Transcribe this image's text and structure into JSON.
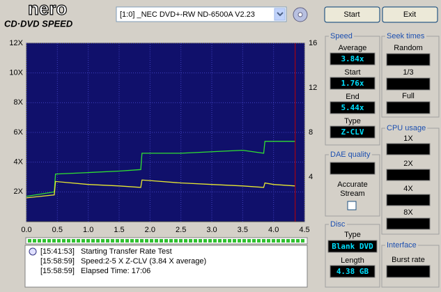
{
  "header": {
    "logo": "nero",
    "subtitle": "CD·DVD SPEED",
    "drive": "[1:0]  _NEC DVD+-RW ND-6500A V2.23",
    "start_button": "Start",
    "exit_button": "Exit"
  },
  "chart_data": {
    "type": "line",
    "x": [
      0,
      0.45,
      0.47,
      1.0,
      1.5,
      1.85,
      1.87,
      2.5,
      3.0,
      3.5,
      3.84,
      3.86,
      4.0,
      4.35
    ],
    "series": [
      {
        "color": "#30e030",
        "values": [
          1.7,
          2.0,
          3.2,
          3.3,
          3.4,
          3.5,
          4.6,
          4.6,
          4.7,
          4.8,
          4.6,
          5.4,
          5.4,
          5.4
        ]
      },
      {
        "color": "#e8e830",
        "values": [
          1.6,
          1.8,
          2.7,
          2.5,
          2.4,
          2.3,
          2.8,
          2.6,
          2.5,
          2.4,
          2.3,
          2.6,
          2.5,
          2.4
        ]
      }
    ],
    "xlim": [
      0,
      4.5
    ],
    "xticks": [
      {
        "value": 0,
        "label": "0.0"
      },
      0.5,
      {
        "value": 1,
        "label": "1.0"
      },
      1.5,
      {
        "value": 2,
        "label": "2.0"
      },
      2.5,
      {
        "value": 3,
        "label": "3.0"
      },
      3.5,
      {
        "value": 4,
        "label": "4.0"
      },
      4.5
    ],
    "ylim": [
      0,
      12
    ],
    "yticks": [
      {
        "value": 2,
        "label": "2X"
      },
      {
        "value": 4,
        "label": "4X"
      },
      {
        "value": 6,
        "label": "6X"
      },
      {
        "value": 8,
        "label": "8X"
      },
      {
        "value": 10,
        "label": "10X"
      },
      {
        "value": 12,
        "label": "12X"
      }
    ],
    "y2lim": [
      0,
      16
    ],
    "y2ticks": [
      4,
      8,
      12,
      16
    ],
    "grid": true,
    "end_line": {
      "x": 4.35,
      "color": "#c00000"
    }
  },
  "log": [
    {
      "time": "[15:41:53]",
      "text": "Starting Transfer Rate Test"
    },
    {
      "time": "[15:58:59]",
      "text": "Speed:2-5 X Z-CLV (3.84 X average)"
    },
    {
      "time": "[15:58:59]",
      "text": "Elapsed Time: 17:06"
    }
  ],
  "speed": {
    "title": "Speed",
    "average_label": "Average",
    "average": "3.84x",
    "start_label": "Start",
    "start": "1.76x",
    "end_label": "End",
    "end": "5.44x",
    "type_label": "Type",
    "type": "Z-CLV"
  },
  "seek_times": {
    "title": "Seek times",
    "random": "Random",
    "third": "1/3",
    "full": "Full"
  },
  "cpu_usage": {
    "title": "CPU usage",
    "x1": "1X",
    "x2": "2X",
    "x4": "4X",
    "x8": "8X"
  },
  "dae_quality": {
    "title": "DAE quality",
    "accurate": "Accurate",
    "stream": "Stream"
  },
  "disc": {
    "title": "Disc",
    "type_label": "Type",
    "type": "Blank DVD",
    "length_label": "Length",
    "length": "4.38 GB"
  },
  "interface": {
    "title": "Interface",
    "burst_rate": "Burst rate"
  }
}
